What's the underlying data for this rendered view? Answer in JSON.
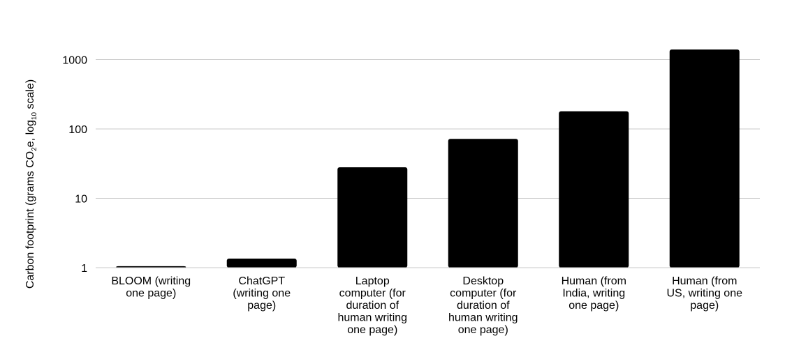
{
  "chart_data": {
    "type": "bar",
    "title": "",
    "xlabel": "",
    "ylabel": {
      "prefix": "Carbon footprint (grams CO",
      "sub1": "2",
      "middle": "e, log",
      "sub2": "10",
      "suffix": " scale)"
    },
    "yscale": "log",
    "ylim": [
      1,
      2000
    ],
    "yticks": [
      "1",
      "10",
      "100",
      "1000"
    ],
    "grid": true,
    "bar_color": "#000000",
    "grid_color": "#c8c8c8",
    "categories": [
      [
        "BLOOM (writing",
        "one page)"
      ],
      [
        "ChatGPT",
        "(writing one",
        "page)"
      ],
      [
        "Laptop",
        "computer (for",
        "duration of",
        "human writing",
        "one page)"
      ],
      [
        "Desktop",
        "computer (for",
        "duration of",
        "human writing",
        "one page)"
      ],
      [
        "Human (from",
        "India, writing",
        "one page)"
      ],
      [
        "Human (from",
        "US, writing one",
        "page)"
      ]
    ],
    "values": [
      1.05,
      1.35,
      28,
      72,
      180,
      1400
    ]
  }
}
